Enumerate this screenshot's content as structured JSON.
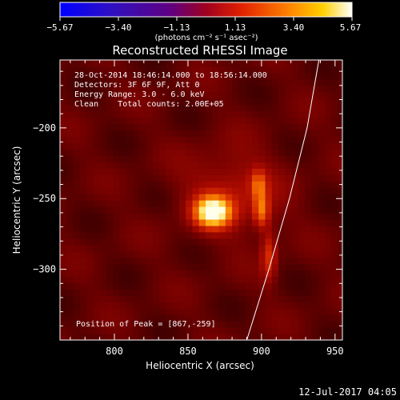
{
  "colorbar": {
    "ticks": [
      "−5.67",
      "−3.40",
      "−1.13",
      "1.13",
      "3.40",
      "5.67"
    ],
    "unit_label": "(photons cm⁻² s⁻¹ asec⁻²)",
    "range": [
      -5.67,
      5.67
    ]
  },
  "chart_data": {
    "type": "heatmap",
    "title": "Reconstructed RHESSI Image",
    "xlabel": "Heliocentric X (arcsec)",
    "ylabel": "Heliocentric Y (arcsec)",
    "xlim": [
      763,
      955
    ],
    "ylim": [
      -350,
      -152
    ],
    "x_ticks": [
      "800",
      "850",
      "900",
      "950"
    ],
    "y_ticks": [
      "−200",
      "−250",
      "−300"
    ],
    "info_lines": [
      "28-Oct-2014 18:46:14.000 to 18:56:14.000",
      "Detectors: 3F 6F 9F, Att 0",
      "Energy Range: 3.0 - 6.0 keV",
      "Clean    Total counts: 2.00E+05"
    ],
    "peak_text": "Position of Peak = [867,-259]",
    "peak": {
      "x": 867,
      "y": -259,
      "value": 5.67
    },
    "sources": [
      {
        "x": 867,
        "y": -259,
        "sx": 8,
        "sy": 7,
        "amp": 5.6
      },
      {
        "x": 900,
        "y": -258,
        "sx": 3.5,
        "sy": 8,
        "amp": 2.4
      },
      {
        "x": 898,
        "y": -240,
        "sx": 3.5,
        "sy": 7,
        "amp": 2.0
      },
      {
        "x": 905,
        "y": -290,
        "sx": 3.5,
        "sy": 12,
        "amp": 1.6
      },
      {
        "x": 880,
        "y": -245,
        "sx": 22,
        "sy": 20,
        "amp": 1.0
      }
    ],
    "limb": [
      [
        939,
        -152
      ],
      [
        931,
        -200
      ],
      [
        919,
        -250
      ],
      [
        905,
        -300
      ],
      [
        890,
        -350
      ]
    ]
  },
  "timestamp": "12-Jul-2017 04:05"
}
